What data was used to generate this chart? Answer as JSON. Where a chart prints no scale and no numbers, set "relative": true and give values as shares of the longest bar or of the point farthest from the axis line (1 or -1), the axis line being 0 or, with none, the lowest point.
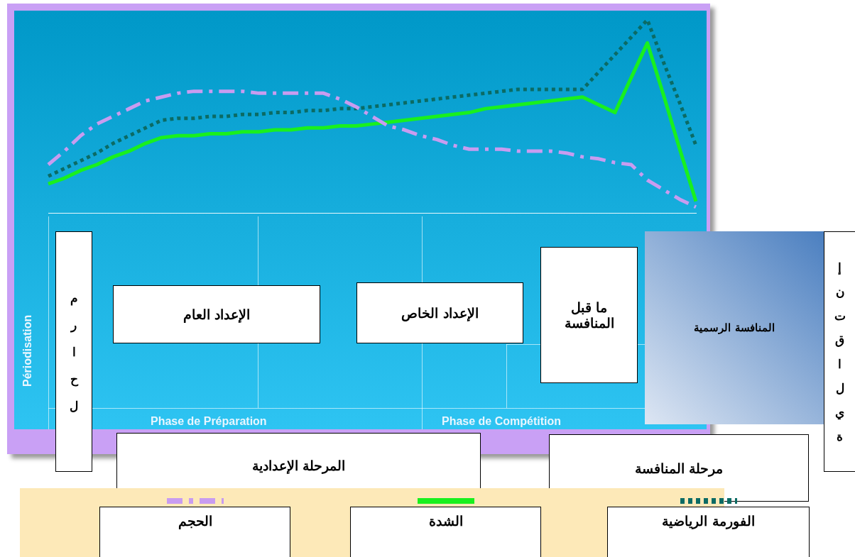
{
  "chart_data": {
    "type": "line",
    "relative": true,
    "tick_labels": false,
    "legend": "bottom",
    "marker": "none",
    "categories": [
      null,
      null,
      null,
      null,
      null,
      null,
      null,
      null,
      null,
      null,
      null,
      null,
      null,
      null,
      null,
      null,
      null,
      null,
      null,
      null,
      null,
      null,
      null,
      null,
      null,
      null,
      null,
      null,
      null,
      null,
      null,
      null,
      null,
      null,
      null,
      null,
      null,
      null,
      null,
      null,
      null
    ],
    "series": [
      {
        "name": "الحجم",
        "color": "#c89cf0",
        "line_style": "dashed",
        "values": [
          0.25,
          0.32,
          0.4,
          0.46,
          0.5,
          0.54,
          0.58,
          0.6,
          0.62,
          0.63,
          0.63,
          0.63,
          0.63,
          0.62,
          0.62,
          0.62,
          0.62,
          0.62,
          0.59,
          0.55,
          0.5,
          0.45,
          0.43,
          0.4,
          0.38,
          0.35,
          0.33,
          0.33,
          0.33,
          0.32,
          0.32,
          0.32,
          0.31,
          0.29,
          0.28,
          0.26,
          0.25,
          0.17,
          0.12,
          0.07,
          0.03
        ]
      },
      {
        "name": "الشدة",
        "color": "#19f01e",
        "line_style": "solid",
        "values": [
          0.15,
          0.18,
          0.22,
          0.25,
          0.29,
          0.32,
          0.36,
          0.39,
          0.4,
          0.4,
          0.41,
          0.41,
          0.42,
          0.42,
          0.43,
          0.43,
          0.44,
          0.44,
          0.45,
          0.45,
          0.46,
          0.47,
          0.48,
          0.49,
          0.5,
          0.51,
          0.52,
          0.54,
          0.55,
          0.56,
          0.57,
          0.58,
          0.59,
          0.6,
          0.56,
          0.52,
          0.7,
          0.88,
          0.61,
          0.33,
          0.06
        ]
      },
      {
        "name": "الفورمة الرياضية",
        "color": "#0b6b64",
        "line_style": "dotted",
        "values": [
          0.19,
          0.23,
          0.27,
          0.31,
          0.36,
          0.4,
          0.44,
          0.48,
          0.49,
          0.49,
          0.5,
          0.5,
          0.51,
          0.51,
          0.52,
          0.52,
          0.53,
          0.53,
          0.54,
          0.54,
          0.55,
          0.56,
          0.57,
          0.58,
          0.59,
          0.6,
          0.61,
          0.62,
          0.63,
          0.64,
          0.64,
          0.64,
          0.64,
          0.64,
          0.73,
          0.82,
          0.91,
          1,
          0.78,
          0.57,
          0.35
        ]
      }
    ],
    "annotations": [
      "Périodisation",
      "Phase de Préparation",
      "Phase de Compétition",
      "مراحل",
      "الإعداد العام",
      "الإعداد الخاص",
      "ما قبل المنافسة",
      "المنافسة الرسمية",
      "إنتقالية",
      "المرحلة الإعدادية",
      "مرحلة المنافسة"
    ]
  }
}
